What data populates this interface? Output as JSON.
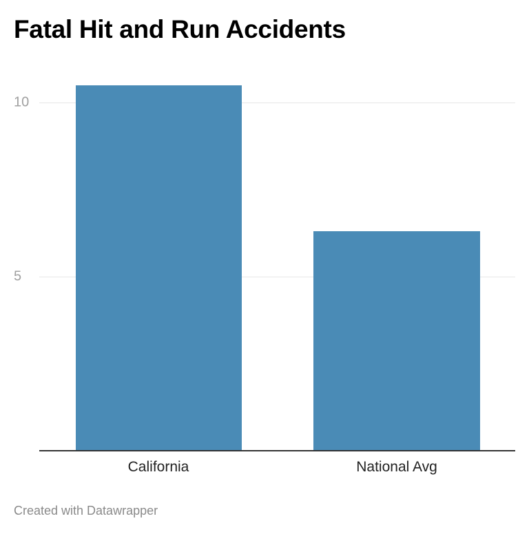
{
  "title": "Fatal Hit and Run Accidents",
  "credit": "Created with Datawrapper",
  "y_ticks": [
    {
      "label": "10",
      "value": 10
    },
    {
      "label": "5",
      "value": 5
    }
  ],
  "bars": [
    {
      "label": "California",
      "value": 10.5
    },
    {
      "label": "National Avg",
      "value": 6.3
    }
  ],
  "colors": {
    "bar": "#4a8bb6",
    "grid": "#e6e6e6",
    "axis": "#333333"
  },
  "chart_data": {
    "type": "bar",
    "title": "Fatal Hit and Run Accidents",
    "categories": [
      "California",
      "National Avg"
    ],
    "values": [
      10.5,
      6.3
    ],
    "xlabel": "",
    "ylabel": "",
    "ylim": [
      0,
      10.5
    ],
    "y_ticks": [
      5,
      10
    ],
    "grid": true,
    "legend": null,
    "source": "Created with Datawrapper"
  }
}
